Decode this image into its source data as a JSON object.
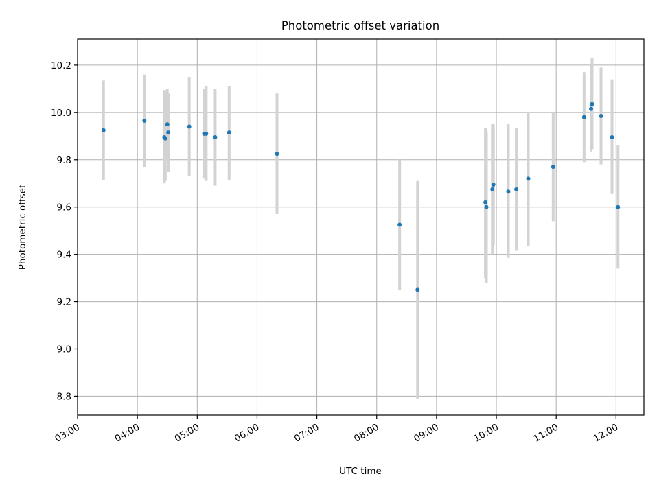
{
  "chart_data": {
    "type": "scatter",
    "title": "Photometric offset variation",
    "xlabel": "UTC time",
    "ylabel": "Photometric offset",
    "x_axis": "time",
    "xlim": [
      "03:00",
      "12:28"
    ],
    "ylim": [
      8.72,
      10.31
    ],
    "xticks": [
      "03:00",
      "04:00",
      "05:00",
      "06:00",
      "07:00",
      "08:00",
      "09:00",
      "10:00",
      "11:00",
      "12:00"
    ],
    "yticks": [
      8.8,
      9.0,
      9.2,
      9.4,
      9.6,
      9.8,
      10.0,
      10.2
    ],
    "grid": true,
    "colors": {
      "point": "#1f77b4",
      "errorbar": "#d3d3d3"
    },
    "series": [
      {
        "points": [
          {
            "x": "03:26",
            "y": 9.925,
            "low": 9.715,
            "high": 10.135
          },
          {
            "x": "04:07",
            "y": 9.965,
            "low": 9.77,
            "high": 10.16
          },
          {
            "x": "04:27",
            "y": 9.895,
            "low": 9.7,
            "high": 10.095
          },
          {
            "x": "04:28",
            "y": 9.89,
            "low": 9.71,
            "high": 10.09
          },
          {
            "x": "04:30",
            "y": 9.95,
            "low": 9.8,
            "high": 10.1
          },
          {
            "x": "04:31",
            "y": 9.915,
            "low": 9.75,
            "high": 10.08
          },
          {
            "x": "04:52",
            "y": 9.94,
            "low": 9.73,
            "high": 10.15
          },
          {
            "x": "05:07",
            "y": 9.91,
            "low": 9.72,
            "high": 10.1
          },
          {
            "x": "05:09",
            "y": 9.91,
            "low": 9.71,
            "high": 10.11
          },
          {
            "x": "05:18",
            "y": 9.895,
            "low": 9.69,
            "high": 10.1
          },
          {
            "x": "05:32",
            "y": 9.915,
            "low": 9.715,
            "high": 10.11
          },
          {
            "x": "06:20",
            "y": 9.825,
            "low": 9.57,
            "high": 10.08
          },
          {
            "x": "08:23",
            "y": 9.525,
            "low": 9.25,
            "high": 9.8
          },
          {
            "x": "08:41",
            "y": 9.25,
            "low": 8.79,
            "high": 9.71
          },
          {
            "x": "09:49",
            "y": 9.62,
            "low": 9.3,
            "high": 9.935
          },
          {
            "x": "09:50",
            "y": 9.6,
            "low": 9.28,
            "high": 9.92
          },
          {
            "x": "09:56",
            "y": 9.675,
            "low": 9.4,
            "high": 9.95
          },
          {
            "x": "09:57",
            "y": 9.695,
            "low": 9.44,
            "high": 9.95
          },
          {
            "x": "10:12",
            "y": 9.665,
            "low": 9.385,
            "high": 9.95
          },
          {
            "x": "10:20",
            "y": 9.675,
            "low": 9.415,
            "high": 9.935
          },
          {
            "x": "10:32",
            "y": 9.72,
            "low": 9.435,
            "high": 10.0
          },
          {
            "x": "10:57",
            "y": 9.77,
            "low": 9.54,
            "high": 10.0
          },
          {
            "x": "11:28",
            "y": 9.98,
            "low": 9.79,
            "high": 10.17
          },
          {
            "x": "11:35",
            "y": 10.015,
            "low": 9.835,
            "high": 10.2
          },
          {
            "x": "11:36",
            "y": 10.035,
            "low": 9.845,
            "high": 10.23
          },
          {
            "x": "11:45",
            "y": 9.985,
            "low": 9.78,
            "high": 10.19
          },
          {
            "x": "11:56",
            "y": 9.895,
            "low": 9.655,
            "high": 10.14
          },
          {
            "x": "12:02",
            "y": 9.6,
            "low": 9.34,
            "high": 9.86
          }
        ]
      }
    ]
  }
}
